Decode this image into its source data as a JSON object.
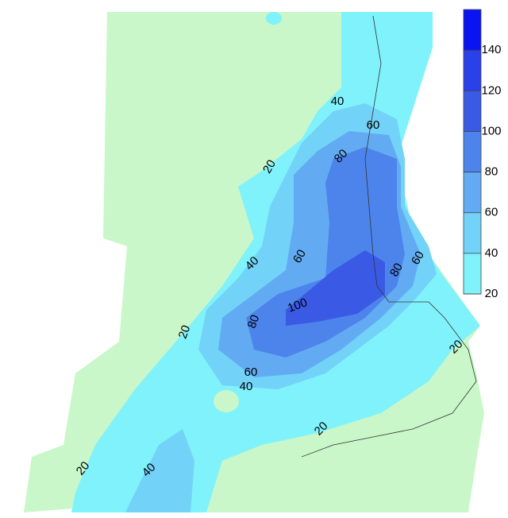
{
  "contour_labels": [
    40,
    60,
    80,
    20,
    40,
    60,
    80,
    60,
    100,
    80,
    20,
    60,
    40,
    20,
    20,
    20,
    40
  ],
  "colorbar": {
    "range": [
      20,
      160
    ],
    "ticks": [
      20,
      40,
      60,
      80,
      100,
      120,
      140
    ],
    "colors": [
      "#80f2fb",
      "#72d2f8",
      "#62abf2",
      "#4c84ec",
      "#3a5ae6",
      "#2a40e8",
      "#0a14f0"
    ]
  }
}
